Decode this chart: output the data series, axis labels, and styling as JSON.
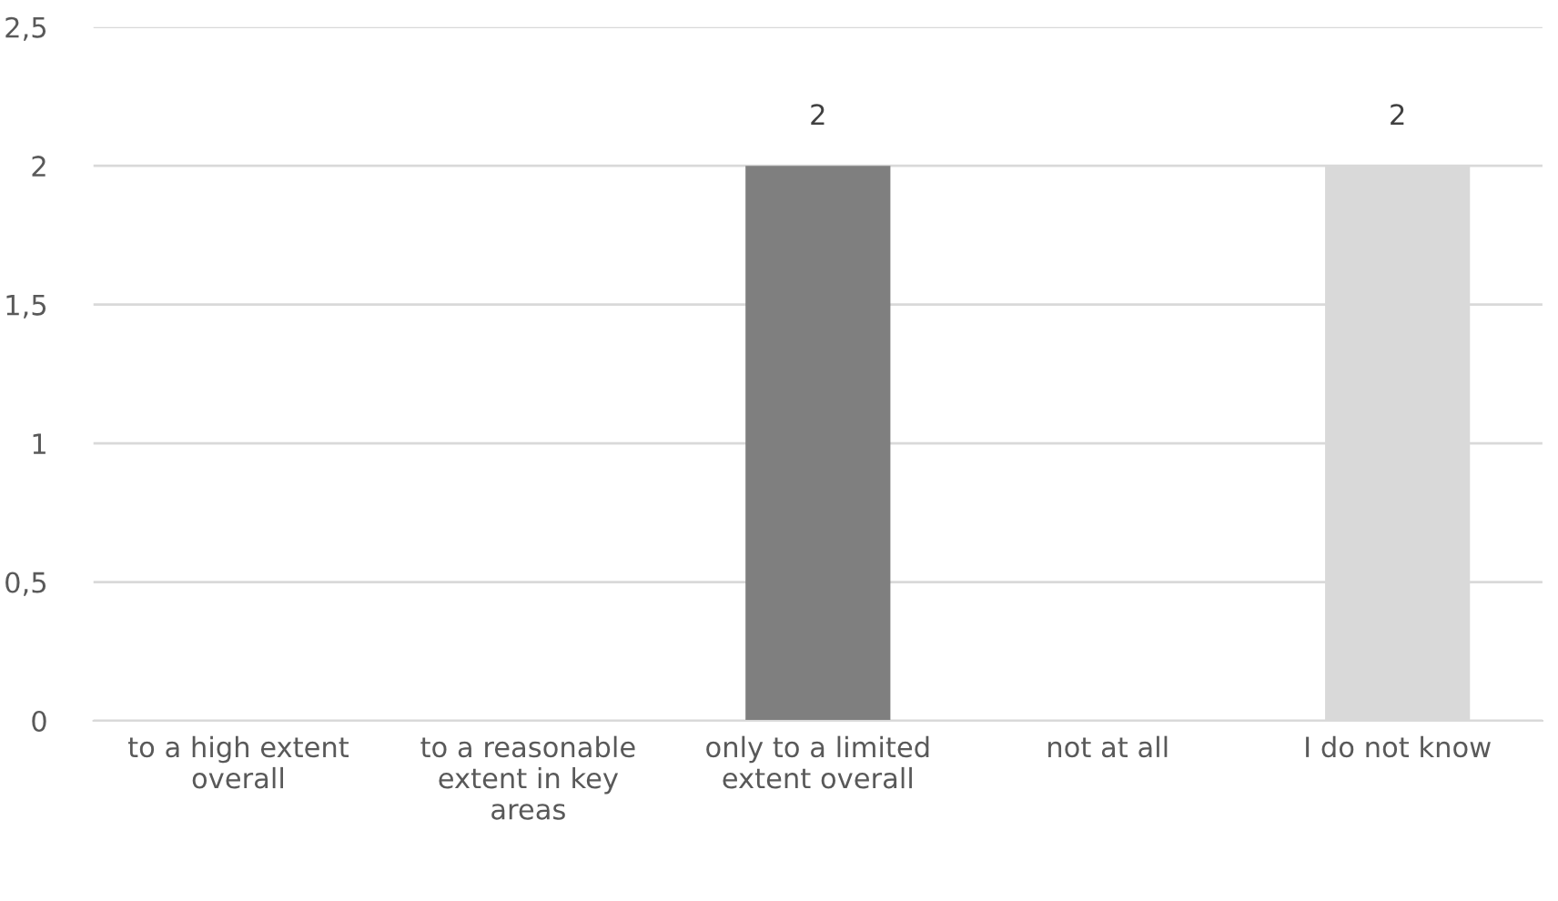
{
  "chart_data": {
    "type": "bar",
    "categories": [
      "to a high extent overall",
      "to a reasonable extent in key areas",
      "only to a limited extent overall",
      "not at all",
      "I do not know"
    ],
    "values": [
      0,
      0,
      2,
      0,
      2
    ],
    "colors": [
      "#404040",
      "#595959",
      "#7f7f7f",
      "#a6a6a6",
      "#d9d9d9"
    ],
    "value_labels": [
      null,
      null,
      "2",
      null,
      "2"
    ],
    "ylim": [
      0,
      2.5
    ],
    "yticks": [
      0,
      {
        "value": 0.5,
        "label": "0,5"
      },
      1,
      {
        "value": 1.5,
        "label": "1,5"
      },
      2,
      {
        "value": 2.5,
        "label": "2,5"
      }
    ],
    "grid": "y"
  }
}
